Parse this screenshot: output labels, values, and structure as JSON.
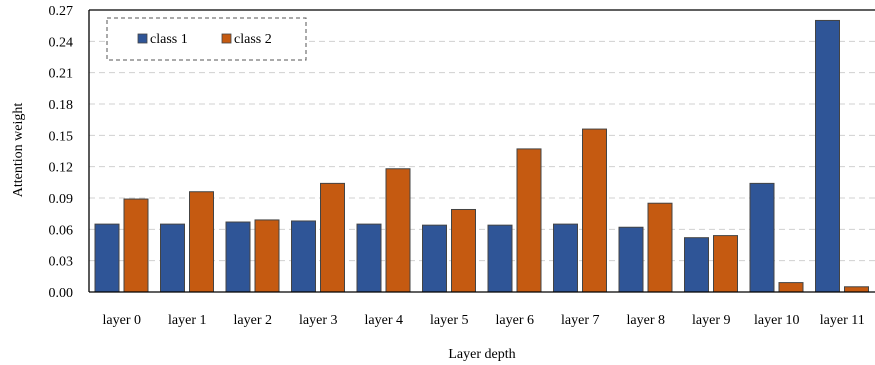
{
  "chart_data": {
    "type": "bar",
    "xlabel": "Layer depth",
    "ylabel": "Attention weight",
    "ylim": [
      0,
      0.27
    ],
    "yticks": [
      "0.00",
      "0.03",
      "0.06",
      "0.09",
      "0.12",
      "0.15",
      "0.18",
      "0.21",
      "0.24",
      "0.27"
    ],
    "grid": "horizontal dashed",
    "legend_position": "top-left",
    "categories": [
      "layer 0",
      "layer 1",
      "layer 2",
      "layer 3",
      "layer 4",
      "layer 5",
      "layer 6",
      "layer 7",
      "layer 8",
      "layer 9",
      "layer 10",
      "layer 11"
    ],
    "series": [
      {
        "name": "class 1",
        "color": "#2F5597",
        "values": [
          0.065,
          0.065,
          0.067,
          0.068,
          0.065,
          0.064,
          0.064,
          0.065,
          0.062,
          0.052,
          0.104,
          0.26
        ]
      },
      {
        "name": "class 2",
        "color": "#C55A11",
        "values": [
          0.089,
          0.096,
          0.069,
          0.104,
          0.118,
          0.079,
          0.137,
          0.156,
          0.085,
          0.054,
          0.009,
          0.005
        ]
      }
    ]
  }
}
